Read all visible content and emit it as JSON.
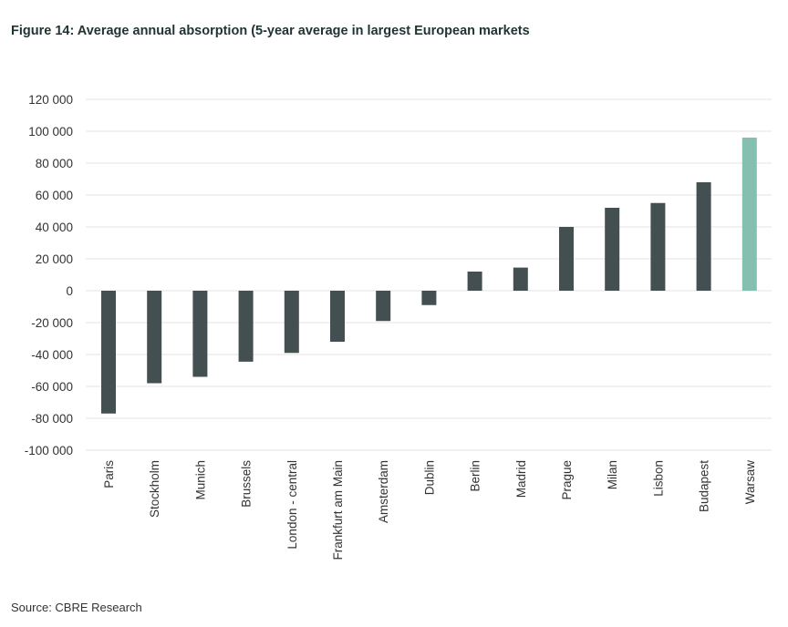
{
  "title": "Figure 14: Average annual absorption (5-year average in largest European markets",
  "source": "Source: CBRE Research",
  "colors": {
    "bar": "#434f50",
    "highlight": "#84bfaf",
    "grid": "#e3e3e3"
  },
  "chart_data": {
    "type": "bar",
    "categories": [
      "Paris",
      "Stockholm",
      "Munich",
      "Brussels",
      "London - central",
      "Frankfurt am Main",
      "Amsterdam",
      "Dublin",
      "Berlin",
      "Madrid",
      "Prague",
      "Milan",
      "Lisbon",
      "Budapest",
      "Warsaw"
    ],
    "values": [
      -77000,
      -58000,
      -54000,
      -44500,
      -39000,
      -32000,
      -19000,
      -9000,
      12000,
      14500,
      40000,
      52000,
      55000,
      68000,
      96000
    ],
    "highlight": [
      "Warsaw"
    ],
    "ylim": [
      -100000,
      120000
    ],
    "yticks": [
      120000,
      100000,
      80000,
      60000,
      40000,
      20000,
      0,
      -20000,
      -40000,
      -60000,
      -80000,
      -100000
    ],
    "ytick_labels": [
      "120 000",
      "100 000",
      "80 000",
      "60 000",
      "40 000",
      "20 000",
      "0",
      "-20 000",
      "-40 000",
      "-60 000",
      "-80 000",
      "-100 000"
    ],
    "grid": true,
    "title": "Figure 14: Average annual absorption (5-year average in largest European markets",
    "xlabel": "",
    "ylabel": ""
  }
}
